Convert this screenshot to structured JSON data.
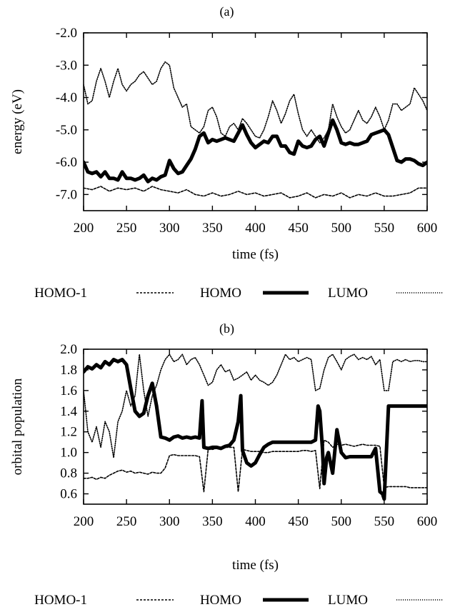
{
  "chart_data": [
    {
      "type": "line",
      "title": "(a)",
      "xlabel": "time (fs)",
      "ylabel": "energy (eV)",
      "xlim": [
        200,
        600
      ],
      "ylim": [
        -7.5,
        -2.0
      ],
      "xticks": [
        "200",
        "250",
        "300",
        "350",
        "400",
        "450",
        "500",
        "550",
        "600"
      ],
      "yticks": [
        "-7.0",
        "-6.0",
        "-5.0",
        "-4.0",
        "-3.0",
        "-2.0"
      ],
      "grid": false,
      "legend_position": "bottom",
      "legend": [
        "HOMO-1",
        "HOMO",
        "LUMO"
      ],
      "series": [
        {
          "name": "HOMO-1",
          "style": "dashed",
          "x": [
            200,
            210,
            220,
            230,
            240,
            250,
            260,
            270,
            280,
            290,
            300,
            310,
            320,
            330,
            340,
            350,
            360,
            370,
            380,
            390,
            400,
            410,
            420,
            430,
            440,
            450,
            460,
            470,
            480,
            490,
            500,
            510,
            520,
            530,
            540,
            550,
            560,
            570,
            580,
            590,
            600
          ],
          "values": [
            -6.8,
            -6.85,
            -6.75,
            -6.9,
            -6.8,
            -6.85,
            -6.8,
            -6.9,
            -6.75,
            -6.85,
            -6.9,
            -6.95,
            -6.85,
            -7.0,
            -7.05,
            -6.95,
            -7.05,
            -7.0,
            -6.9,
            -7.0,
            -6.95,
            -7.05,
            -7.0,
            -6.95,
            -7.1,
            -7.05,
            -6.95,
            -7.1,
            -7.0,
            -7.05,
            -6.95,
            -7.1,
            -7.0,
            -7.05,
            -6.95,
            -7.05,
            -7.05,
            -7.0,
            -6.95,
            -6.8,
            -6.8
          ]
        },
        {
          "name": "HOMO",
          "style": "solid-thick",
          "x": [
            200,
            205,
            210,
            215,
            220,
            225,
            230,
            235,
            240,
            245,
            250,
            255,
            260,
            265,
            270,
            275,
            280,
            285,
            290,
            295,
            300,
            305,
            310,
            315,
            320,
            325,
            330,
            335,
            340,
            345,
            350,
            355,
            360,
            365,
            370,
            375,
            380,
            385,
            390,
            395,
            400,
            405,
            410,
            415,
            420,
            425,
            430,
            435,
            440,
            445,
            450,
            455,
            460,
            465,
            470,
            475,
            480,
            485,
            490,
            495,
            500,
            505,
            510,
            515,
            520,
            525,
            530,
            535,
            540,
            545,
            550,
            555,
            560,
            565,
            570,
            575,
            580,
            585,
            590,
            595,
            600
          ],
          "values": [
            -6.0,
            -6.3,
            -6.35,
            -6.3,
            -6.45,
            -6.3,
            -6.5,
            -6.5,
            -6.55,
            -6.3,
            -6.5,
            -6.5,
            -6.55,
            -6.5,
            -6.4,
            -6.6,
            -6.5,
            -6.55,
            -6.45,
            -6.4,
            -5.95,
            -6.2,
            -6.35,
            -6.3,
            -6.1,
            -5.9,
            -5.6,
            -5.2,
            -5.1,
            -5.4,
            -5.3,
            -5.35,
            -5.3,
            -5.25,
            -5.3,
            -5.35,
            -5.1,
            -4.85,
            -5.15,
            -5.4,
            -5.55,
            -5.45,
            -5.35,
            -5.4,
            -5.2,
            -5.2,
            -5.5,
            -5.5,
            -5.7,
            -5.75,
            -5.35,
            -5.5,
            -5.55,
            -5.5,
            -5.3,
            -5.2,
            -5.5,
            -5.1,
            -4.7,
            -5.0,
            -5.4,
            -5.45,
            -5.4,
            -5.45,
            -5.45,
            -5.4,
            -5.35,
            -5.15,
            -5.1,
            -5.05,
            -5.0,
            -5.15,
            -5.55,
            -5.95,
            -6.0,
            -5.9,
            -5.9,
            -5.95,
            -6.05,
            -6.1,
            -6.0
          ]
        },
        {
          "name": "LUMO",
          "style": "dotted",
          "x": [
            200,
            205,
            210,
            215,
            220,
            225,
            230,
            235,
            240,
            245,
            250,
            255,
            260,
            265,
            270,
            275,
            280,
            285,
            290,
            295,
            300,
            305,
            310,
            315,
            320,
            325,
            330,
            335,
            340,
            345,
            350,
            355,
            360,
            365,
            370,
            375,
            380,
            385,
            390,
            395,
            400,
            405,
            410,
            415,
            420,
            425,
            430,
            435,
            440,
            445,
            450,
            455,
            460,
            465,
            470,
            475,
            480,
            485,
            490,
            495,
            500,
            505,
            510,
            515,
            520,
            525,
            530,
            535,
            540,
            545,
            550,
            555,
            560,
            565,
            570,
            575,
            580,
            585,
            590,
            595,
            600
          ],
          "values": [
            -3.6,
            -4.2,
            -4.1,
            -3.5,
            -3.1,
            -3.5,
            -4.0,
            -3.5,
            -3.1,
            -3.6,
            -3.8,
            -3.6,
            -3.5,
            -3.3,
            -3.2,
            -3.4,
            -3.6,
            -3.5,
            -3.1,
            -2.9,
            -3.0,
            -3.7,
            -4.0,
            -4.3,
            -4.2,
            -4.9,
            -5.0,
            -5.1,
            -4.9,
            -4.4,
            -4.3,
            -4.6,
            -5.1,
            -5.2,
            -4.9,
            -4.8,
            -5.0,
            -4.65,
            -4.8,
            -5.0,
            -5.2,
            -5.25,
            -5.0,
            -4.6,
            -4.1,
            -4.4,
            -4.8,
            -4.5,
            -4.1,
            -3.9,
            -4.5,
            -5.0,
            -5.2,
            -5.0,
            -5.2,
            -5.4,
            -5.25,
            -5.0,
            -4.2,
            -4.6,
            -4.9,
            -5.1,
            -5.0,
            -4.7,
            -4.4,
            -4.7,
            -4.8,
            -4.6,
            -4.3,
            -4.6,
            -5.0,
            -4.7,
            -4.2,
            -4.2,
            -4.4,
            -4.3,
            -4.2,
            -3.7,
            -3.9,
            -4.1,
            -4.4
          ]
        }
      ]
    },
    {
      "type": "line",
      "title": "(b)",
      "xlabel": "time (fs)",
      "ylabel": "orbital population",
      "xlim": [
        200,
        600
      ],
      "ylim": [
        0.5,
        2.0
      ],
      "xticks": [
        "200",
        "250",
        "300",
        "350",
        "400",
        "450",
        "500",
        "550",
        "600"
      ],
      "yticks": [
        "0.6",
        "0.8",
        "1.0",
        "1.2",
        "1.4",
        "1.6",
        "1.8",
        "2.0"
      ],
      "grid": false,
      "legend_position": "bottom",
      "legend": [
        "HOMO-1",
        "HOMO",
        "LUMO"
      ],
      "series": [
        {
          "name": "HOMO-1",
          "style": "dashed",
          "x": [
            200,
            205,
            210,
            215,
            220,
            225,
            230,
            235,
            240,
            245,
            250,
            255,
            260,
            265,
            270,
            275,
            280,
            285,
            290,
            295,
            300,
            305,
            310,
            315,
            320,
            325,
            330,
            335,
            340,
            345,
            350,
            355,
            360,
            365,
            370,
            375,
            380,
            385,
            390,
            395,
            400,
            405,
            410,
            415,
            420,
            425,
            430,
            435,
            440,
            445,
            450,
            455,
            460,
            465,
            470,
            475,
            480,
            485,
            490,
            495,
            500,
            505,
            510,
            515,
            520,
            525,
            530,
            535,
            540,
            545,
            550,
            555,
            560,
            565,
            570,
            575,
            580,
            585,
            590,
            595,
            600
          ],
          "values": [
            0.75,
            0.75,
            0.76,
            0.74,
            0.76,
            0.75,
            0.78,
            0.8,
            0.82,
            0.83,
            0.81,
            0.82,
            0.8,
            0.81,
            0.8,
            0.79,
            0.81,
            0.8,
            0.8,
            0.85,
            0.97,
            0.98,
            0.97,
            0.97,
            0.97,
            0.97,
            0.97,
            0.96,
            0.62,
            1.03,
            1.03,
            1.04,
            1.05,
            1.05,
            1.05,
            1.05,
            0.62,
            1.03,
            1.02,
            1.01,
            1.01,
            1.01,
            1.0,
            1.0,
            1.01,
            1.01,
            1.01,
            1.01,
            1.01,
            1.01,
            1.01,
            1.02,
            1.02,
            1.01,
            1.02,
            0.65,
            1.12,
            1.1,
            1.05,
            1.08,
            1.07,
            1.08,
            1.07,
            1.06,
            1.07,
            1.08,
            1.07,
            1.07,
            1.07,
            1.06,
            0.66,
            0.67,
            0.67,
            0.67,
            0.67,
            0.67,
            0.66,
            0.66,
            0.66,
            0.66,
            0.66
          ]
        },
        {
          "name": "HOMO",
          "style": "solid-thick",
          "x": [
            200,
            205,
            210,
            215,
            220,
            225,
            230,
            235,
            240,
            245,
            250,
            255,
            260,
            265,
            270,
            275,
            280,
            285,
            290,
            295,
            300,
            305,
            310,
            315,
            320,
            325,
            330,
            335,
            338,
            340,
            345,
            350,
            355,
            360,
            365,
            370,
            375,
            380,
            383,
            385,
            390,
            395,
            400,
            405,
            410,
            415,
            420,
            425,
            430,
            435,
            440,
            445,
            450,
            455,
            460,
            465,
            470,
            473,
            475,
            478,
            480,
            483,
            485,
            490,
            495,
            500,
            505,
            510,
            515,
            520,
            525,
            530,
            535,
            540,
            545,
            548,
            550,
            555,
            560,
            565,
            570,
            575,
            580,
            585,
            590,
            595,
            600
          ],
          "values": [
            1.78,
            1.83,
            1.81,
            1.85,
            1.82,
            1.88,
            1.85,
            1.9,
            1.88,
            1.9,
            1.85,
            1.62,
            1.4,
            1.35,
            1.38,
            1.55,
            1.67,
            1.45,
            1.15,
            1.14,
            1.12,
            1.15,
            1.16,
            1.14,
            1.15,
            1.14,
            1.15,
            1.14,
            1.5,
            1.05,
            1.04,
            1.05,
            1.05,
            1.04,
            1.06,
            1.07,
            1.12,
            1.3,
            1.55,
            1.02,
            0.9,
            0.87,
            0.9,
            0.98,
            1.05,
            1.08,
            1.1,
            1.1,
            1.1,
            1.1,
            1.1,
            1.1,
            1.1,
            1.1,
            1.1,
            1.1,
            1.12,
            1.45,
            1.4,
            1.05,
            0.7,
            0.95,
            1.0,
            0.8,
            1.22,
            1.0,
            0.95,
            0.96,
            0.96,
            0.96,
            0.96,
            0.96,
            0.96,
            1.04,
            0.62,
            0.6,
            0.55,
            1.45,
            1.45,
            1.45,
            1.45,
            1.45,
            1.45,
            1.45,
            1.45,
            1.45,
            1.45
          ]
        },
        {
          "name": "LUMO",
          "style": "dotted",
          "x": [
            200,
            205,
            210,
            215,
            220,
            225,
            230,
            235,
            240,
            245,
            250,
            255,
            260,
            265,
            270,
            275,
            280,
            285,
            290,
            295,
            300,
            305,
            310,
            315,
            320,
            325,
            330,
            335,
            340,
            345,
            350,
            355,
            360,
            365,
            370,
            375,
            380,
            385,
            390,
            395,
            400,
            405,
            410,
            415,
            420,
            425,
            430,
            435,
            440,
            445,
            450,
            455,
            460,
            465,
            470,
            475,
            480,
            485,
            490,
            495,
            500,
            505,
            510,
            515,
            520,
            525,
            530,
            535,
            540,
            545,
            550,
            555,
            560,
            565,
            570,
            575,
            580,
            585,
            590,
            595,
            600
          ],
          "values": [
            1.6,
            1.2,
            1.1,
            1.25,
            1.05,
            1.3,
            1.2,
            0.95,
            1.3,
            1.4,
            1.6,
            1.45,
            1.55,
            1.95,
            1.6,
            1.35,
            1.55,
            1.65,
            1.8,
            1.9,
            1.95,
            1.88,
            1.9,
            1.95,
            1.85,
            1.9,
            1.92,
            1.85,
            1.75,
            1.65,
            1.68,
            1.8,
            1.85,
            1.78,
            1.8,
            1.7,
            1.72,
            1.75,
            1.78,
            1.7,
            1.75,
            1.7,
            1.68,
            1.65,
            1.68,
            1.75,
            1.85,
            1.95,
            1.9,
            1.92,
            1.88,
            1.9,
            1.92,
            1.9,
            1.6,
            1.62,
            1.8,
            1.92,
            1.95,
            1.88,
            1.8,
            1.9,
            1.93,
            1.95,
            1.9,
            1.92,
            1.9,
            1.93,
            1.85,
            1.9,
            1.6,
            1.6,
            1.88,
            1.9,
            1.88,
            1.9,
            1.88,
            1.89,
            1.89,
            1.88,
            1.88
          ]
        }
      ]
    }
  ]
}
